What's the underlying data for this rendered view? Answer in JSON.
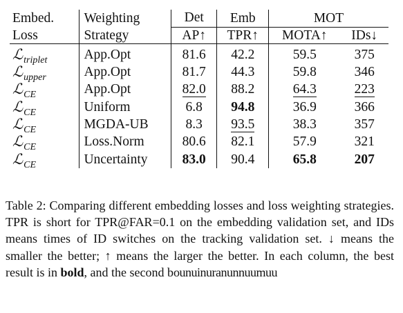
{
  "table": {
    "headers": {
      "loss_line1": "Embed.",
      "loss_line2": "Loss",
      "strategy_line1": "Weighting",
      "strategy_line2": "Strategy",
      "det_group": "Det",
      "det_metric": "AP↑",
      "emb_group": "Emb",
      "emb_metric": "TPR↑",
      "mot_group": "MOT",
      "mota_metric": "MOTA↑",
      "ids_metric": "IDs↓"
    },
    "loss_symbol": "ℒ",
    "rows": [
      {
        "loss_sub": "triplet",
        "strategy": "App.Opt",
        "ap": "81.6",
        "tpr": "42.2",
        "mota": "59.5",
        "ids": "375"
      },
      {
        "loss_sub": "upper",
        "strategy": "App.Opt",
        "ap": "81.7",
        "tpr": "44.3",
        "mota": "59.8",
        "ids": "346"
      },
      {
        "loss_sub": "CE",
        "strategy": "App.Opt",
        "ap": "82.0",
        "tpr": "88.2",
        "mota": "64.3",
        "ids": "223"
      },
      {
        "loss_sub": "CE",
        "strategy": "Uniform",
        "ap": "6.8",
        "tpr": "94.8",
        "mota": "36.9",
        "ids": "366"
      },
      {
        "loss_sub": "CE",
        "strategy": "MGDA-UB",
        "ap": "8.3",
        "tpr": "93.5",
        "mota": "38.3",
        "ids": "357"
      },
      {
        "loss_sub": "CE",
        "strategy": "Loss.Norm",
        "ap": "80.6",
        "tpr": "82.1",
        "mota": "57.9",
        "ids": "321"
      },
      {
        "loss_sub": "CE",
        "strategy": "Uncertainty",
        "ap": "83.0",
        "tpr": "90.4",
        "mota": "65.8",
        "ids": "207"
      }
    ]
  },
  "caption": {
    "part1": "Table 2: Comparing different embedding losses and loss weighting strategies. TPR is short for TPR@FAR=0.1 on the embedding validation set, and IDs means times of ID switches on the tracking validation set. ↓ means the smaller the better; ↑ means the larger the better. In each column, the best result is in ",
    "bold_word": "bold",
    "part2": ", and the second b",
    "garbled_tail": "ounuinuranunnuumuu"
  }
}
